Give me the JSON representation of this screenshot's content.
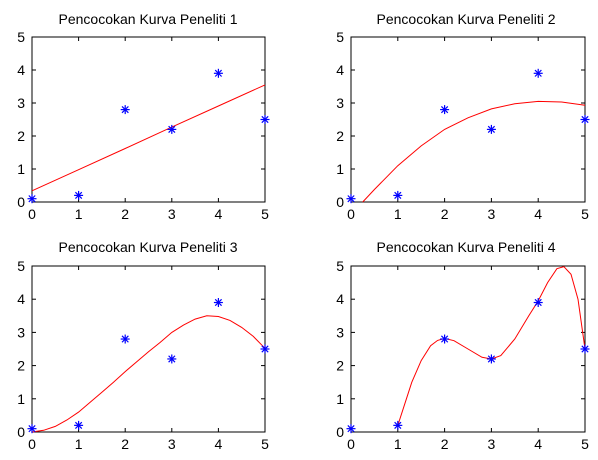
{
  "figure": {
    "background": "#ffffff",
    "marker_color": "#0000ff",
    "curve_color": "#ff0000"
  },
  "chart_data": [
    {
      "type": "scatter",
      "title": "Pencocokan Kurva Peneliti 1",
      "xlim": [
        0,
        5
      ],
      "ylim": [
        0,
        5
      ],
      "xticks": [
        "0",
        "1",
        "2",
        "3",
        "4",
        "5"
      ],
      "yticks": [
        "0",
        "1",
        "2",
        "3",
        "4",
        "5"
      ],
      "grid": false,
      "points": {
        "x": [
          0,
          1,
          2,
          3,
          4,
          5
        ],
        "y": [
          0.1,
          0.2,
          2.8,
          2.2,
          3.9,
          2.5
        ],
        "marker": "*"
      },
      "curve": {
        "x": [
          0,
          1,
          2,
          3,
          4,
          5
        ],
        "y": [
          0.34,
          0.98,
          1.62,
          2.27,
          2.91,
          3.55
        ]
      }
    },
    {
      "type": "scatter",
      "title": "Pencocokan Kurva Peneliti 2",
      "xlim": [
        0,
        5
      ],
      "ylim": [
        0,
        5
      ],
      "xticks": [
        "0",
        "1",
        "2",
        "3",
        "4",
        "5"
      ],
      "yticks": [
        "0",
        "1",
        "2",
        "3",
        "4",
        "5"
      ],
      "grid": false,
      "points": {
        "x": [
          0,
          1,
          2,
          3,
          4,
          5
        ],
        "y": [
          0.1,
          0.2,
          2.8,
          2.2,
          3.9,
          2.5
        ],
        "marker": "*"
      },
      "curve": {
        "x": [
          0.25,
          0.5,
          1,
          1.5,
          2,
          2.5,
          3,
          3.5,
          4,
          4.5,
          5
        ],
        "y": [
          0.0,
          0.38,
          1.1,
          1.7,
          2.2,
          2.55,
          2.82,
          2.98,
          3.05,
          3.03,
          2.93
        ]
      }
    },
    {
      "type": "scatter",
      "title": "Pencocokan Kurva Peneliti 3",
      "xlim": [
        0,
        5
      ],
      "ylim": [
        0,
        5
      ],
      "xticks": [
        "0",
        "1",
        "2",
        "3",
        "4",
        "5"
      ],
      "yticks": [
        "0",
        "1",
        "2",
        "3",
        "4",
        "5"
      ],
      "grid": false,
      "points": {
        "x": [
          0,
          1,
          2,
          3,
          4,
          5
        ],
        "y": [
          0.1,
          0.2,
          2.8,
          2.2,
          3.9,
          2.5
        ],
        "marker": "*"
      },
      "curve": {
        "x": [
          0,
          0.25,
          0.5,
          0.75,
          1,
          1.25,
          1.5,
          1.75,
          2,
          2.25,
          2.5,
          2.75,
          3,
          3.25,
          3.5,
          3.75,
          4,
          4.25,
          4.5,
          4.75,
          5
        ],
        "y": [
          0.0,
          0.05,
          0.17,
          0.36,
          0.6,
          0.9,
          1.2,
          1.5,
          1.82,
          2.12,
          2.42,
          2.7,
          3.0,
          3.22,
          3.4,
          3.5,
          3.48,
          3.36,
          3.15,
          2.88,
          2.52
        ]
      }
    },
    {
      "type": "scatter",
      "title": "Pencocokan Kurva Peneliti 4",
      "xlim": [
        0,
        5
      ],
      "ylim": [
        0,
        5
      ],
      "xticks": [
        "0",
        "1",
        "2",
        "3",
        "4",
        "5"
      ],
      "yticks": [
        "0",
        "1",
        "2",
        "3",
        "4",
        "5"
      ],
      "grid": false,
      "points": {
        "x": [
          0,
          1,
          2,
          3,
          4,
          5
        ],
        "y": [
          0.1,
          0.2,
          2.8,
          2.2,
          3.9,
          2.5
        ],
        "marker": "*"
      },
      "curve": {
        "x": [
          1,
          1.15,
          1.3,
          1.5,
          1.7,
          1.85,
          2,
          2.2,
          2.5,
          2.8,
          3,
          3.2,
          3.5,
          3.8,
          4,
          4.2,
          4.4,
          4.55,
          4.7,
          4.85,
          5
        ],
        "y": [
          0.2,
          0.85,
          1.5,
          2.15,
          2.6,
          2.76,
          2.82,
          2.75,
          2.5,
          2.25,
          2.2,
          2.3,
          2.8,
          3.5,
          3.95,
          4.5,
          4.92,
          4.98,
          4.75,
          4.0,
          2.5
        ]
      }
    }
  ]
}
